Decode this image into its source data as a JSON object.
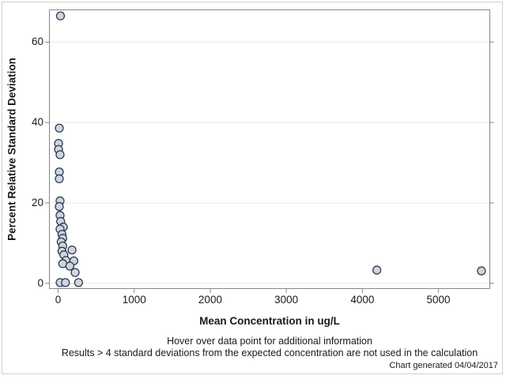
{
  "page": {
    "background": "#ffffff",
    "border_color": "#cfcfcf",
    "text_color": "#1a1a1a"
  },
  "chart_data": {
    "type": "scatter",
    "title": "",
    "xlabel": "Mean Concentration in ug/L",
    "ylabel": "Percent Relative Standard Deviation",
    "xticks": [
      0,
      1000,
      2000,
      3000,
      4000,
      5000
    ],
    "yticks": [
      0,
      20,
      40,
      60
    ],
    "xlim": [
      -115,
      5675
    ],
    "ylim": [
      -1.3,
      68
    ],
    "grid": "horizontal-only",
    "legend": "none",
    "axis_color": "#868686",
    "grid_color": "#e8e8e8",
    "marker": {
      "shape": "circle",
      "fill": "#ccd5e0",
      "stroke": "#333c4e",
      "radius": 5
    },
    "points": [
      [
        30,
        66.5
      ],
      [
        15,
        38.6
      ],
      [
        5,
        34.8
      ],
      [
        5,
        33.3
      ],
      [
        25,
        32.0
      ],
      [
        15,
        27.7
      ],
      [
        15,
        26.0
      ],
      [
        25,
        20.5
      ],
      [
        15,
        19.1
      ],
      [
        25,
        16.9
      ],
      [
        33,
        15.4
      ],
      [
        68,
        14.0
      ],
      [
        25,
        13.5
      ],
      [
        50,
        12.2
      ],
      [
        60,
        11.2
      ],
      [
        40,
        10.3
      ],
      [
        60,
        9.3
      ],
      [
        182,
        8.3
      ],
      [
        50,
        8.0
      ],
      [
        75,
        7.1
      ],
      [
        102,
        5.7
      ],
      [
        206,
        5.6
      ],
      [
        60,
        4.9
      ],
      [
        154,
        4.3
      ],
      [
        223,
        2.7
      ],
      [
        26,
        0.2
      ],
      [
        96,
        0.2
      ],
      [
        268,
        0.2
      ],
      [
        4190,
        3.3
      ],
      [
        5565,
        3.1
      ]
    ]
  },
  "footer": {
    "note1": "Hover over data point for additional information",
    "note2": "Results > 4 standard deviations from the expected concentration are not used in the calculation",
    "generated": "Chart generated 04/04/2017"
  }
}
